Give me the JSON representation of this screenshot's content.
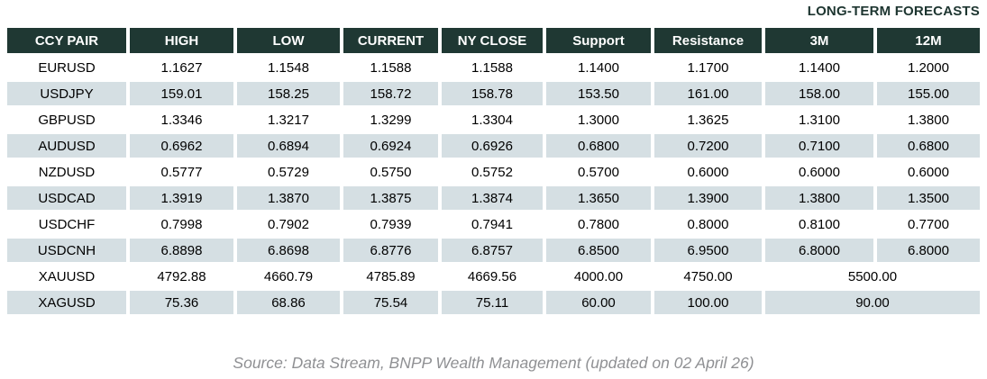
{
  "chart_data": {
    "type": "table",
    "title": "LONG-TERM FORECASTS",
    "columns": [
      "CCY PAIR",
      "HIGH",
      "LOW",
      "CURRENT",
      "NY CLOSE",
      "Support",
      "Resistance",
      "3M",
      "12M"
    ],
    "rows": [
      {
        "pair": "EURUSD",
        "high": "1.1627",
        "low": "1.1548",
        "current": "1.1588",
        "ny_close": "1.1588",
        "support": "1.1400",
        "resistance": "1.1700",
        "m3": "1.1400",
        "m12": "1.2000"
      },
      {
        "pair": "USDJPY",
        "high": "159.01",
        "low": "158.25",
        "current": "158.72",
        "ny_close": "158.78",
        "support": "153.50",
        "resistance": "161.00",
        "m3": "158.00",
        "m12": "155.00"
      },
      {
        "pair": "GBPUSD",
        "high": "1.3346",
        "low": "1.3217",
        "current": "1.3299",
        "ny_close": "1.3304",
        "support": "1.3000",
        "resistance": "1.3625",
        "m3": "1.3100",
        "m12": "1.3800"
      },
      {
        "pair": "AUDUSD",
        "high": "0.6962",
        "low": "0.6894",
        "current": "0.6924",
        "ny_close": "0.6926",
        "support": "0.6800",
        "resistance": "0.7200",
        "m3": "0.7100",
        "m12": "0.6800"
      },
      {
        "pair": "NZDUSD",
        "high": "0.5777",
        "low": "0.5729",
        "current": "0.5750",
        "ny_close": "0.5752",
        "support": "0.5700",
        "resistance": "0.6000",
        "m3": "0.6000",
        "m12": "0.6000"
      },
      {
        "pair": "USDCAD",
        "high": "1.3919",
        "low": "1.3870",
        "current": "1.3875",
        "ny_close": "1.3874",
        "support": "1.3650",
        "resistance": "1.3900",
        "m3": "1.3800",
        "m12": "1.3500"
      },
      {
        "pair": "USDCHF",
        "high": "0.7998",
        "low": "0.7902",
        "current": "0.7939",
        "ny_close": "0.7941",
        "support": "0.7800",
        "resistance": "0.8000",
        "m3": "0.8100",
        "m12": "0.7700"
      },
      {
        "pair": "USDCNH",
        "high": "6.8898",
        "low": "6.8698",
        "current": "6.8776",
        "ny_close": "6.8757",
        "support": "6.8500",
        "resistance": "6.9500",
        "m3": "6.8000",
        "m12": "6.8000"
      },
      {
        "pair": "XAUUSD",
        "high": "4792.88",
        "low": "4660.79",
        "current": "4785.89",
        "ny_close": "4669.56",
        "support": "4000.00",
        "resistance": "4750.00",
        "forecast_merged": "5500.00"
      },
      {
        "pair": "XAGUSD",
        "high": "75.36",
        "low": "68.86",
        "current": "75.54",
        "ny_close": "75.11",
        "support": "60.00",
        "resistance": "100.00",
        "forecast_merged": "90.00"
      }
    ],
    "source": "Source: Data Stream, BNPP Wealth Management (updated on 02 April 26)",
    "layout": {
      "legend_position": "none",
      "grid": "cell-spacing gaps, no lines",
      "striped_rows": true
    },
    "colors": {
      "header_bg": "#1f3833",
      "header_text": "#ffffff",
      "stripe_bg": "#d5dfe3",
      "row_bg": "#ffffff",
      "body_text": "#000000",
      "title_text": "#1d3530",
      "source_text": "#8f9093"
    }
  }
}
